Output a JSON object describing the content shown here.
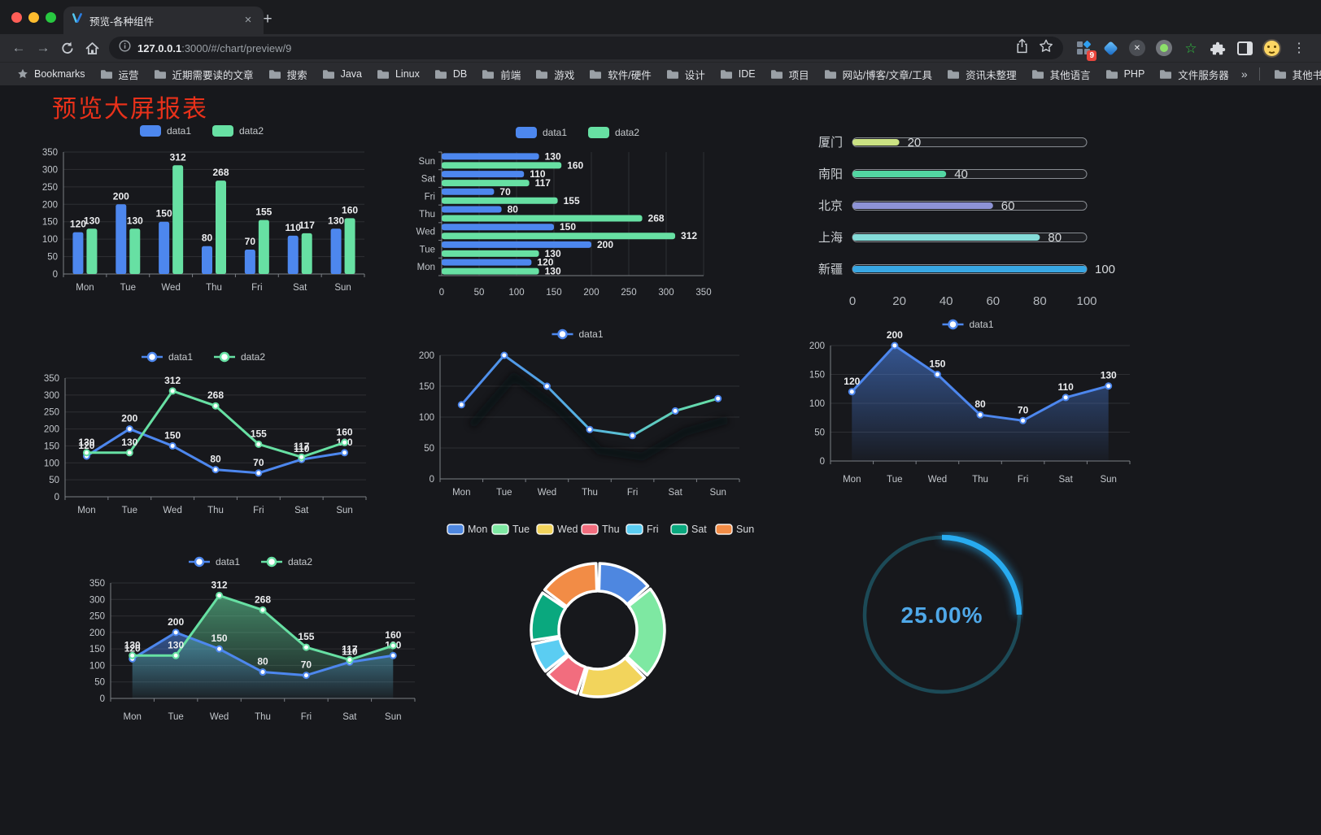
{
  "browser": {
    "tab_title": "预览-各种组件",
    "url_host": "127.0.0.1",
    "url_rest": ":3000/#/chart/preview/9",
    "extension_badge": "9",
    "bookmarks_label": "Bookmarks",
    "bookmarks": [
      "运营",
      "近期需要读的文章",
      "搜索",
      "Java",
      "Linux",
      "DB",
      "前端",
      "游戏",
      "软件/硬件",
      "设计",
      "IDE",
      "项目",
      "网站/博客/文章/工具",
      "资讯未整理",
      "其他语言",
      "PHP",
      "文件服务器"
    ],
    "other_bookmarks": "其他书签"
  },
  "icons": {
    "back": "←",
    "forward": "→",
    "close": "×",
    "new_tab": "+",
    "overflow": "»",
    "menu": "⋮",
    "ext_cross": "✕",
    "ext_star": "☆"
  },
  "page": {
    "title": "预览大屏报表",
    "title_color": "#e8311a",
    "background": "#17181c",
    "accent_blue": "#4d87ee",
    "accent_green": "#67e0a3"
  },
  "chart_data": [
    {
      "id": "bar-grouped",
      "type": "bar",
      "categories": [
        "Mon",
        "Tue",
        "Wed",
        "Thu",
        "Fri",
        "Sat",
        "Sun"
      ],
      "series": [
        {
          "name": "data1",
          "color": "#4d87ee",
          "values": [
            120,
            200,
            150,
            80,
            70,
            110,
            130
          ]
        },
        {
          "name": "data2",
          "color": "#67e0a3",
          "values": [
            130,
            130,
            312,
            268,
            155,
            117,
            160
          ]
        }
      ],
      "ylim": [
        0,
        350
      ],
      "ytick_step": 50,
      "grid": true,
      "legend_position": "top",
      "value_labels": true
    },
    {
      "id": "hbar-grouped",
      "type": "bar",
      "orientation": "horizontal",
      "categories": [
        "Mon",
        "Tue",
        "Wed",
        "Thu",
        "Fri",
        "Sat",
        "Sun"
      ],
      "series": [
        {
          "name": "data1",
          "color": "#4d87ee",
          "values": [
            120,
            200,
            150,
            80,
            70,
            110,
            130
          ]
        },
        {
          "name": "data2",
          "color": "#67e0a3",
          "values": [
            130,
            130,
            312,
            268,
            155,
            117,
            160
          ]
        }
      ],
      "xlim": [
        0,
        350
      ],
      "xtick_step": 50,
      "grid": true,
      "legend_position": "top",
      "value_labels": true
    },
    {
      "id": "city-progress",
      "type": "bar",
      "subtype": "progress",
      "items": [
        {
          "label": "厦门",
          "value": 20,
          "color": "#cbe283"
        },
        {
          "label": "南阳",
          "value": 40,
          "color": "#52d6a2"
        },
        {
          "label": "北京",
          "value": 60,
          "color": "#8d93d6"
        },
        {
          "label": "上海",
          "value": 80,
          "color": "#85dcd9"
        },
        {
          "label": "新疆",
          "value": 100,
          "color": "#38a7e4"
        }
      ],
      "xlim": [
        0,
        100
      ],
      "xticks": [
        0,
        20,
        40,
        60,
        80,
        100
      ]
    },
    {
      "id": "line-two",
      "type": "line",
      "categories": [
        "Mon",
        "Tue",
        "Wed",
        "Thu",
        "Fri",
        "Sat",
        "Sun"
      ],
      "series": [
        {
          "name": "data1",
          "color": "#4d87ee",
          "values": [
            120,
            200,
            150,
            80,
            70,
            110,
            130
          ]
        },
        {
          "name": "data2",
          "color": "#67e0a3",
          "values": [
            130,
            130,
            312,
            268,
            155,
            117,
            160
          ]
        }
      ],
      "ylim": [
        0,
        350
      ],
      "ytick_step": 50,
      "grid": true,
      "legend_position": "top",
      "value_labels": true
    },
    {
      "id": "line-gradient",
      "type": "line",
      "categories": [
        "Mon",
        "Tue",
        "Wed",
        "Thu",
        "Fri",
        "Sat",
        "Sun"
      ],
      "series": [
        {
          "name": "data1",
          "gradient": [
            "#4d87ee",
            "#56b5e0",
            "#67e0a3"
          ],
          "color": "#4d87ee",
          "values": [
            120,
            200,
            150,
            80,
            70,
            110,
            130
          ]
        }
      ],
      "ylim": [
        0,
        200
      ],
      "ytick_step": 50,
      "grid": true,
      "legend_position": "top",
      "value_labels": false
    },
    {
      "id": "area-single",
      "type": "area",
      "categories": [
        "Mon",
        "Tue",
        "Wed",
        "Thu",
        "Fri",
        "Sat",
        "Sun"
      ],
      "series": [
        {
          "name": "data1",
          "color": "#4d87ee",
          "values": [
            120,
            200,
            150,
            80,
            70,
            110,
            130
          ]
        }
      ],
      "ylim": [
        0,
        200
      ],
      "ytick_step": 50,
      "grid": true,
      "legend_position": "top",
      "value_labels": true
    },
    {
      "id": "area-two",
      "type": "area",
      "categories": [
        "Mon",
        "Tue",
        "Wed",
        "Thu",
        "Fri",
        "Sat",
        "Sun"
      ],
      "series": [
        {
          "name": "data1",
          "color": "#4d87ee",
          "values": [
            120,
            200,
            150,
            80,
            70,
            110,
            130
          ]
        },
        {
          "name": "data2",
          "color": "#67e0a3",
          "values": [
            130,
            130,
            312,
            268,
            155,
            117,
            160
          ]
        }
      ],
      "ylim": [
        0,
        350
      ],
      "ytick_step": 50,
      "grid": true,
      "legend_position": "top",
      "value_labels": true
    },
    {
      "id": "donut",
      "type": "pie",
      "inner_radius_ratio": 0.58,
      "labels": [
        "Mon",
        "Tue",
        "Wed",
        "Thu",
        "Fri",
        "Sat",
        "Sun"
      ],
      "values": [
        120,
        200,
        150,
        80,
        70,
        110,
        130
      ],
      "colors": [
        "#4e87e0",
        "#7ee8a2",
        "#f2d45c",
        "#f26d7e",
        "#5bcdf2",
        "#0aa87e",
        "#f28c46"
      ],
      "legend_position": "top"
    },
    {
      "id": "gauge",
      "type": "gauge",
      "percent": 25,
      "label": "25.00%",
      "arc_color": "#28abf0",
      "track_color": "#1c4a57",
      "text_color": "#4fa8e8"
    }
  ]
}
